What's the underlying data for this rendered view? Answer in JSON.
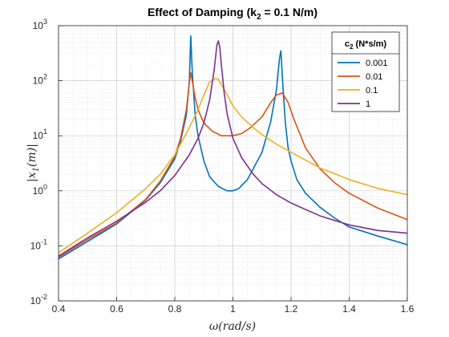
{
  "chart_data": {
    "type": "line",
    "title": "Effect of Damping (k",
    "title_subscript": "2",
    "title_suffix": " = 0.1 N/m)",
    "xlabel": "ω(rad/s)",
    "ylabel": "|x₁(m)|",
    "xlim": [
      0.4,
      1.6
    ],
    "ylim": [
      0.01,
      1000
    ],
    "yscale": "log",
    "grid": true,
    "minor_grid": true,
    "x_ticks": [
      "0.4",
      "0.6",
      "0.8",
      "1",
      "1.2",
      "1.4",
      "1.6"
    ],
    "y_ticks": [
      {
        "base": "10",
        "exp": "-2"
      },
      {
        "base": "10",
        "exp": "-1"
      },
      {
        "base": "10",
        "exp": "0"
      },
      {
        "base": "10",
        "exp": "1"
      },
      {
        "base": "10",
        "exp": "2"
      },
      {
        "base": "10",
        "exp": "3"
      }
    ],
    "legend": {
      "title": "c",
      "title_subscript": "2",
      "title_suffix": " (N*s/m)",
      "placement": "top-right"
    },
    "series": [
      {
        "name": "0.001",
        "color": "#0072bd",
        "x": [
          0.4,
          0.5,
          0.6,
          0.7,
          0.75,
          0.8,
          0.82,
          0.84,
          0.85,
          0.855,
          0.86,
          0.87,
          0.88,
          0.9,
          0.92,
          0.95,
          0.98,
          1.0,
          1.02,
          1.05,
          1.1,
          1.13,
          1.15,
          1.16,
          1.165,
          1.17,
          1.18,
          1.19,
          1.2,
          1.22,
          1.25,
          1.3,
          1.35,
          1.4,
          1.5,
          1.6
        ],
        "y": [
          0.058,
          0.12,
          0.25,
          0.68,
          1.4,
          3.8,
          8,
          24,
          100,
          650,
          150,
          24,
          10,
          3.5,
          1.8,
          1.2,
          1.0,
          1.0,
          1.1,
          1.6,
          5,
          18,
          70,
          250,
          350,
          120,
          18,
          6,
          3.5,
          1.6,
          0.9,
          0.5,
          0.32,
          0.22,
          0.15,
          0.105
        ]
      },
      {
        "name": "0.01",
        "color": "#d95319",
        "x": [
          0.4,
          0.5,
          0.6,
          0.7,
          0.75,
          0.8,
          0.82,
          0.84,
          0.85,
          0.855,
          0.86,
          0.87,
          0.88,
          0.9,
          0.93,
          0.96,
          1.0,
          1.03,
          1.06,
          1.1,
          1.13,
          1.15,
          1.17,
          1.19,
          1.21,
          1.25,
          1.3,
          1.35,
          1.4,
          1.5,
          1.6
        ],
        "y": [
          0.062,
          0.13,
          0.26,
          0.7,
          1.5,
          4.2,
          9,
          30,
          90,
          140,
          100,
          50,
          30,
          17,
          12,
          10,
          10,
          11,
          14,
          22,
          40,
          55,
          60,
          40,
          20,
          6,
          2.5,
          1.4,
          0.9,
          0.48,
          0.3
        ]
      },
      {
        "name": "0.1",
        "color": "#edb120",
        "x": [
          0.4,
          0.5,
          0.6,
          0.7,
          0.75,
          0.8,
          0.85,
          0.88,
          0.9,
          0.92,
          0.94,
          0.95,
          0.97,
          1.0,
          1.03,
          1.07,
          1.1,
          1.15,
          1.2,
          1.3,
          1.4,
          1.5,
          1.6
        ],
        "y": [
          0.075,
          0.17,
          0.4,
          1.1,
          2.0,
          4.5,
          14,
          30,
          55,
          95,
          110,
          105,
          70,
          35,
          22,
          14,
          10.5,
          7,
          5,
          2.6,
          1.6,
          1.1,
          0.85
        ]
      },
      {
        "name": "1",
        "color": "#7e2f8e",
        "x": [
          0.4,
          0.5,
          0.6,
          0.7,
          0.75,
          0.8,
          0.85,
          0.88,
          0.9,
          0.92,
          0.935,
          0.945,
          0.95,
          0.955,
          0.96,
          0.97,
          0.98,
          1.0,
          1.03,
          1.07,
          1.1,
          1.15,
          1.2,
          1.3,
          1.4,
          1.5,
          1.6
        ],
        "y": [
          0.065,
          0.14,
          0.28,
          0.62,
          1.0,
          1.9,
          4.5,
          9,
          17,
          45,
          150,
          450,
          530,
          400,
          200,
          60,
          25,
          9,
          4,
          2,
          1.35,
          0.85,
          0.6,
          0.35,
          0.24,
          0.19,
          0.17
        ]
      }
    ]
  }
}
